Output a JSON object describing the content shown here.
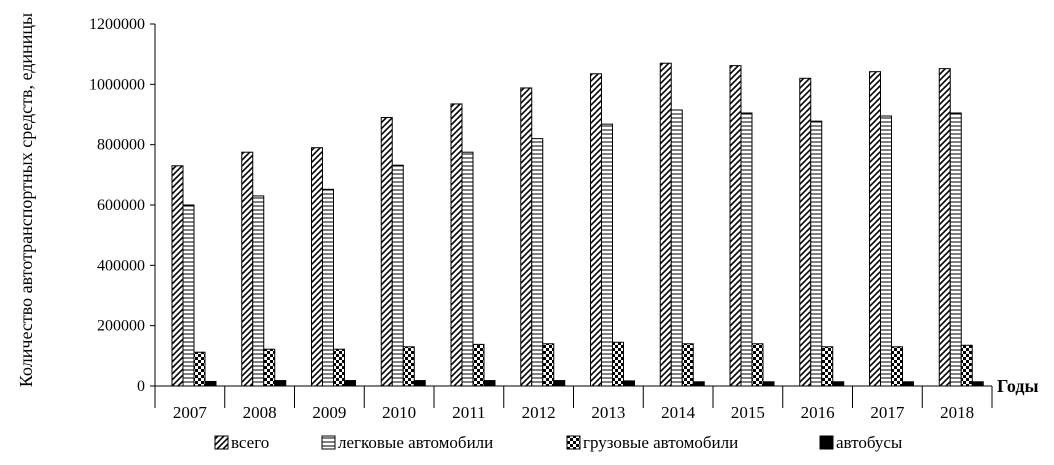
{
  "chart_data": {
    "type": "bar",
    "ylabel": "Количество автотранспортных средств, единицы",
    "xlabel": "Годы",
    "categories": [
      "2007",
      "2008",
      "2009",
      "2010",
      "2011",
      "2012",
      "2013",
      "2014",
      "2015",
      "2016",
      "2017",
      "2018"
    ],
    "ylim": [
      0,
      1200000
    ],
    "yticks": [
      "0",
      "200000",
      "400000",
      "600000",
      "800000",
      "1000000",
      "1200000"
    ],
    "grid": false,
    "legend_position": "bottom",
    "series": [
      {
        "name": "всего",
        "pattern": "diagonal-hatch",
        "values": [
          730000,
          775000,
          790000,
          890000,
          935000,
          988000,
          1035000,
          1070000,
          1062000,
          1020000,
          1042000,
          1052000
        ]
      },
      {
        "name": "легковые автомобили",
        "pattern": "horizontal-stripes",
        "values": [
          600000,
          630000,
          652000,
          732000,
          775000,
          820000,
          868000,
          915000,
          905000,
          878000,
          895000,
          905000
        ]
      },
      {
        "name": "грузовые автомобили",
        "pattern": "checkerboard",
        "values": [
          112000,
          122000,
          122000,
          130000,
          138000,
          140000,
          145000,
          140000,
          140000,
          130000,
          130000,
          135000
        ]
      },
      {
        "name": "автобусы",
        "pattern": "solid-black",
        "values": [
          15000,
          18000,
          18000,
          18000,
          18000,
          18000,
          17000,
          14000,
          14000,
          14000,
          14000,
          14000
        ]
      }
    ]
  }
}
